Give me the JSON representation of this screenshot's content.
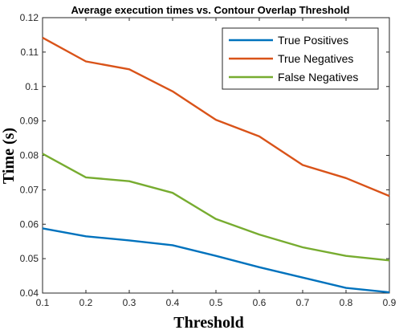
{
  "chart_data": {
    "type": "line",
    "title": "Average execution times vs. Contour Overlap Threshold",
    "xlabel": "Threshold",
    "ylabel": "Time (s)",
    "xlim": [
      0.1,
      0.9
    ],
    "ylim": [
      0.04,
      0.12
    ],
    "x": [
      0.1,
      0.2,
      0.3,
      0.4,
      0.5,
      0.6,
      0.7,
      0.8,
      0.9
    ],
    "x_ticks": [
      "0.1",
      "0.2",
      "0.3",
      "0.4",
      "0.5",
      "0.6",
      "0.7",
      "0.8",
      "0.9"
    ],
    "y_ticks": [
      "0.04",
      "0.05",
      "0.06",
      "0.07",
      "0.08",
      "0.09",
      "0.1",
      "0.11",
      "0.12"
    ],
    "grid": false,
    "legend_position": "top-right",
    "series": [
      {
        "name": "True Positives",
        "color": "#0072BD",
        "values": [
          0.0588,
          0.0565,
          0.0553,
          0.0539,
          0.0508,
          0.0475,
          0.0445,
          0.0415,
          0.0402
        ]
      },
      {
        "name": "True Negatives",
        "color": "#D95319",
        "values": [
          0.1142,
          0.1073,
          0.105,
          0.0986,
          0.0903,
          0.0855,
          0.0772,
          0.0734,
          0.0682
        ]
      },
      {
        "name": "False Negatives",
        "color": "#77AC30",
        "values": [
          0.0805,
          0.0736,
          0.0725,
          0.0691,
          0.0615,
          0.057,
          0.0533,
          0.0508,
          0.0495
        ]
      }
    ]
  }
}
